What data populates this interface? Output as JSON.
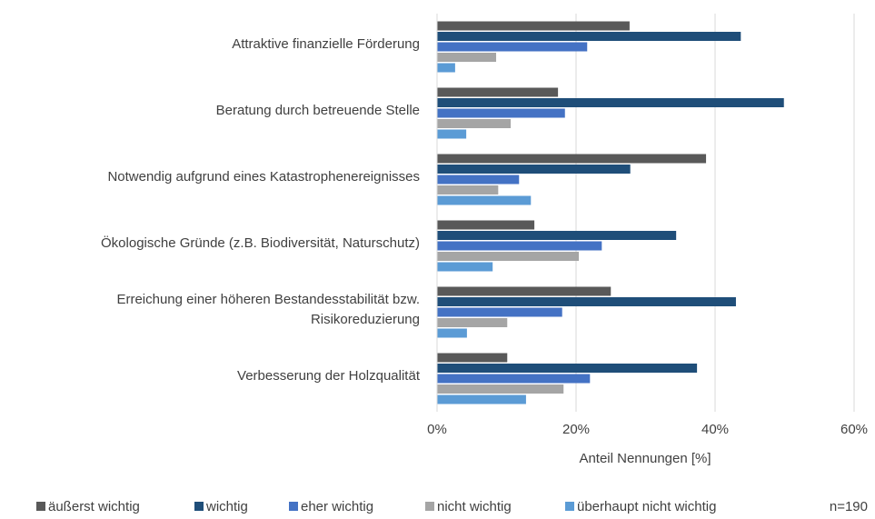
{
  "chart_data": {
    "type": "barh",
    "categories": [
      "Attraktive finanzielle Förderung",
      "Beratung durch betreuende Stelle",
      "Notwendig aufgrund eines Katastrophenereignisses",
      "Ökologische Gründe (z.B. Biodiversität, Naturschutz)",
      "Erreichung einer höheren Bestandesstabilität bzw.\nRisikoreduzierung",
      "Verbesserung der Holzqualität"
    ],
    "series": [
      {
        "name": "äußerst wichtig",
        "color": "#595959",
        "values": [
          27.7,
          17.4,
          38.7,
          14.0,
          25.0,
          10.1
        ]
      },
      {
        "name": "wichtig",
        "color": "#1f4e79",
        "values": [
          43.7,
          49.9,
          27.8,
          34.4,
          43.0,
          37.4
        ]
      },
      {
        "name": "eher wichtig",
        "color": "#4472c4",
        "values": [
          21.6,
          18.4,
          11.8,
          23.7,
          18.0,
          22.0
        ]
      },
      {
        "name": "nicht wichtig",
        "color": "#a5a5a5",
        "values": [
          8.5,
          10.6,
          8.8,
          20.4,
          10.1,
          18.2
        ]
      },
      {
        "name": "überhaupt nicht wichtig",
        "color": "#5b9bd5",
        "values": [
          2.6,
          4.2,
          13.5,
          8.0,
          4.3,
          12.8
        ]
      }
    ],
    "xlabel": "Anteil Nennungen [%]",
    "xlim": [
      0,
      60
    ],
    "xticks": [
      {
        "value": 0,
        "label": "0%"
      },
      {
        "value": 20,
        "label": "20%"
      },
      {
        "value": 40,
        "label": "40%"
      },
      {
        "value": 60,
        "label": "60%"
      }
    ],
    "grid": true,
    "legend": "bottom",
    "annotation": "n=190"
  }
}
